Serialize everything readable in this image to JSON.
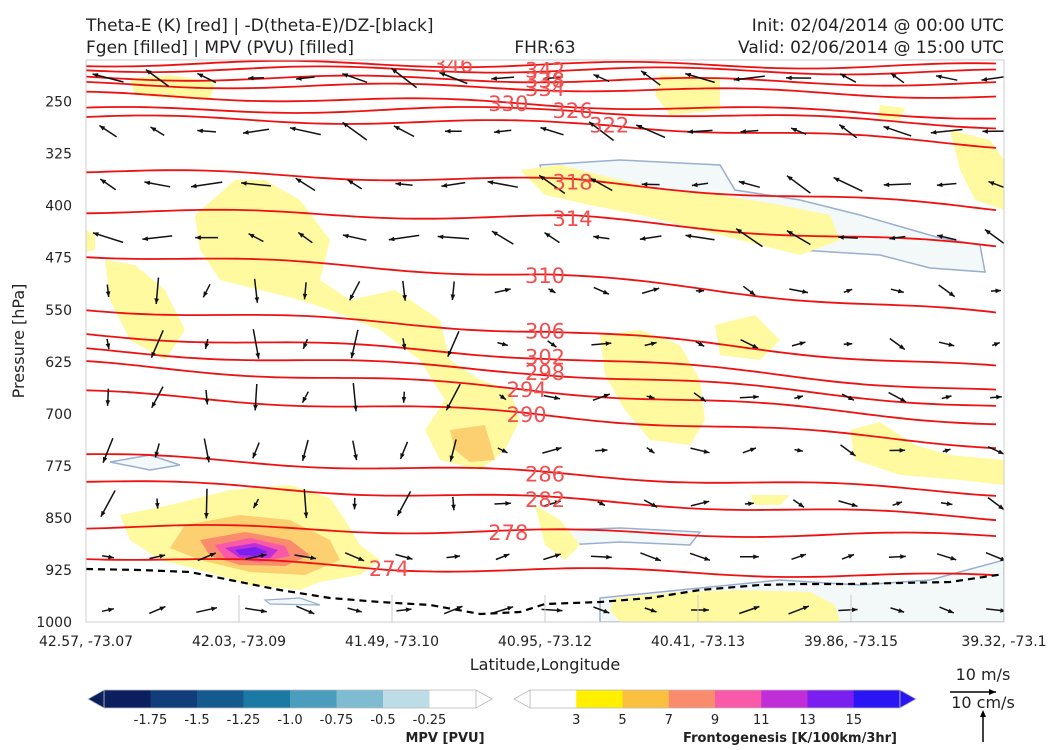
{
  "header": {
    "title_left_1": "Theta-E (K) [red] | -D(theta-E)/DZ-[black]",
    "title_left_2": "Fgen [filled] | MPV (PVU) [filled]",
    "title_center": "FHR:63",
    "title_right_1": "Init: 02/04/2014 @ 00:00 UTC",
    "title_right_2": "Valid: 02/06/2014 @ 15:00 UTC"
  },
  "chart_data": {
    "type": "contour",
    "xlabel": "Latitude,Longitude",
    "ylabel": "Pressure [hPa]",
    "x_ticks": [
      "42.57, -73.07",
      "42.03, -73.09",
      "41.49, -73.10",
      "40.95, -73.12",
      "40.41, -73.13",
      "39.86, -73.15",
      "39.32, -73.1"
    ],
    "y_ticks": [
      250,
      325,
      400,
      475,
      550,
      625,
      700,
      775,
      850,
      925,
      1000
    ],
    "ylim": [
      1000,
      190
    ],
    "theta_e_contours": [
      {
        "value": 274,
        "label": "274",
        "x_start": 0,
        "y_start": 905,
        "x_label": 0.33,
        "p_label": 922,
        "slope": 0.3
      },
      {
        "value": 278,
        "label": "278",
        "x_start": 0,
        "y_start": 862,
        "x_label": 0.46,
        "p_label": 870,
        "slope": 0.15
      },
      {
        "value": 282,
        "label": "282",
        "x_start": 0,
        "y_start": 797,
        "x_label": 0.5,
        "p_label": 823,
        "slope": 0.6
      },
      {
        "value": 286,
        "label": "286",
        "x_start": 0,
        "y_start": 760,
        "x_label": 0.5,
        "p_label": 786,
        "slope": 0.55
      },
      {
        "value": 290,
        "label": "290",
        "x_start": 0,
        "y_start": 670,
        "x_label": 0.48,
        "p_label": 700,
        "slope": 0.7
      },
      {
        "value": 294,
        "label": "294",
        "x_start": 0,
        "y_start": 628,
        "x_label": 0.48,
        "p_label": 664,
        "slope": 0.7
      },
      {
        "value": 298,
        "label": "298",
        "x_start": 0,
        "y_start": 608,
        "x_label": 0.5,
        "p_label": 640,
        "slope": 0.7
      },
      {
        "value": 302,
        "label": "302",
        "x_start": 0,
        "y_start": 585,
        "x_label": 0.5,
        "p_label": 617,
        "slope": 0.7
      },
      {
        "value": 306,
        "label": "306",
        "x_start": 0,
        "y_start": 548,
        "x_label": 0.5,
        "p_label": 580,
        "slope": 0.7
      },
      {
        "value": 310,
        "label": "310",
        "x_start": 0,
        "y_start": 470,
        "x_label": 0.5,
        "p_label": 500,
        "slope": 0.65
      },
      {
        "value": 314,
        "label": "314",
        "x_start": 0,
        "y_start": 407,
        "x_label": 0.53,
        "p_label": 418,
        "slope": 0.45
      },
      {
        "value": 318,
        "label": "318",
        "x_start": 0,
        "y_start": 350,
        "x_label": 0.53,
        "p_label": 365,
        "slope": 0.4
      },
      {
        "value": 322,
        "label": "322",
        "x_start": 0,
        "y_start": 273,
        "x_label": 0.57,
        "p_label": 283,
        "slope": 0.3
      },
      {
        "value": 326,
        "label": "326",
        "x_start": 0,
        "y_start": 262,
        "x_label": 0.53,
        "p_label": 262,
        "slope": 0.2
      },
      {
        "value": 330,
        "label": "330",
        "x_start": 0,
        "y_start": 240,
        "x_label": 0.46,
        "p_label": 252,
        "slope": 0.15
      },
      {
        "value": 334,
        "label": "334",
        "x_start": 0,
        "y_start": 225,
        "x_label": 0.5,
        "p_label": 230,
        "slope": 0.1
      },
      {
        "value": 338,
        "label": "338",
        "x_start": 0,
        "y_start": 215,
        "x_label": 0.5,
        "p_label": 218,
        "slope": 0.05
      },
      {
        "value": 342,
        "label": "342",
        "x_start": 0,
        "y_start": 203,
        "x_label": 0.5,
        "p_label": 204,
        "slope": 0.03
      },
      {
        "value": 346,
        "label": "346",
        "x_start": 0,
        "y_start": 195,
        "x_label": 0.4,
        "p_label": 196,
        "slope": 0.02
      }
    ],
    "mpv_colorbar": {
      "label": "MPV [PVU]",
      "ticks": [
        "-1.75",
        "-1.5",
        "-1.25",
        "-1.0",
        "-0.75",
        "-0.5",
        "-0.25"
      ],
      "colors": [
        "#0b1f5e",
        "#123d7b",
        "#145a8f",
        "#1b7aa3",
        "#4a9dbd",
        "#7fbcd2",
        "#bcdce6",
        "#ffffff"
      ]
    },
    "fgen_colorbar": {
      "label": "Frontogenesis [K/100km/3hr]",
      "ticks": [
        "3",
        "5",
        "7",
        "9",
        "11",
        "13",
        "15"
      ],
      "colors": [
        "#ffffff",
        "#fff000",
        "#fcc040",
        "#fa8c6e",
        "#f859a8",
        "#c02ed8",
        "#7b1ff0",
        "#2a16f2"
      ]
    },
    "vector_key": {
      "horizontal": "10 m/s",
      "vertical": "10 cm/s"
    },
    "colors": {
      "theta_e": "#ee1111",
      "theta_e_label": "#f05050",
      "stability": "#000000",
      "mpv_line": "#9aaed0"
    }
  }
}
